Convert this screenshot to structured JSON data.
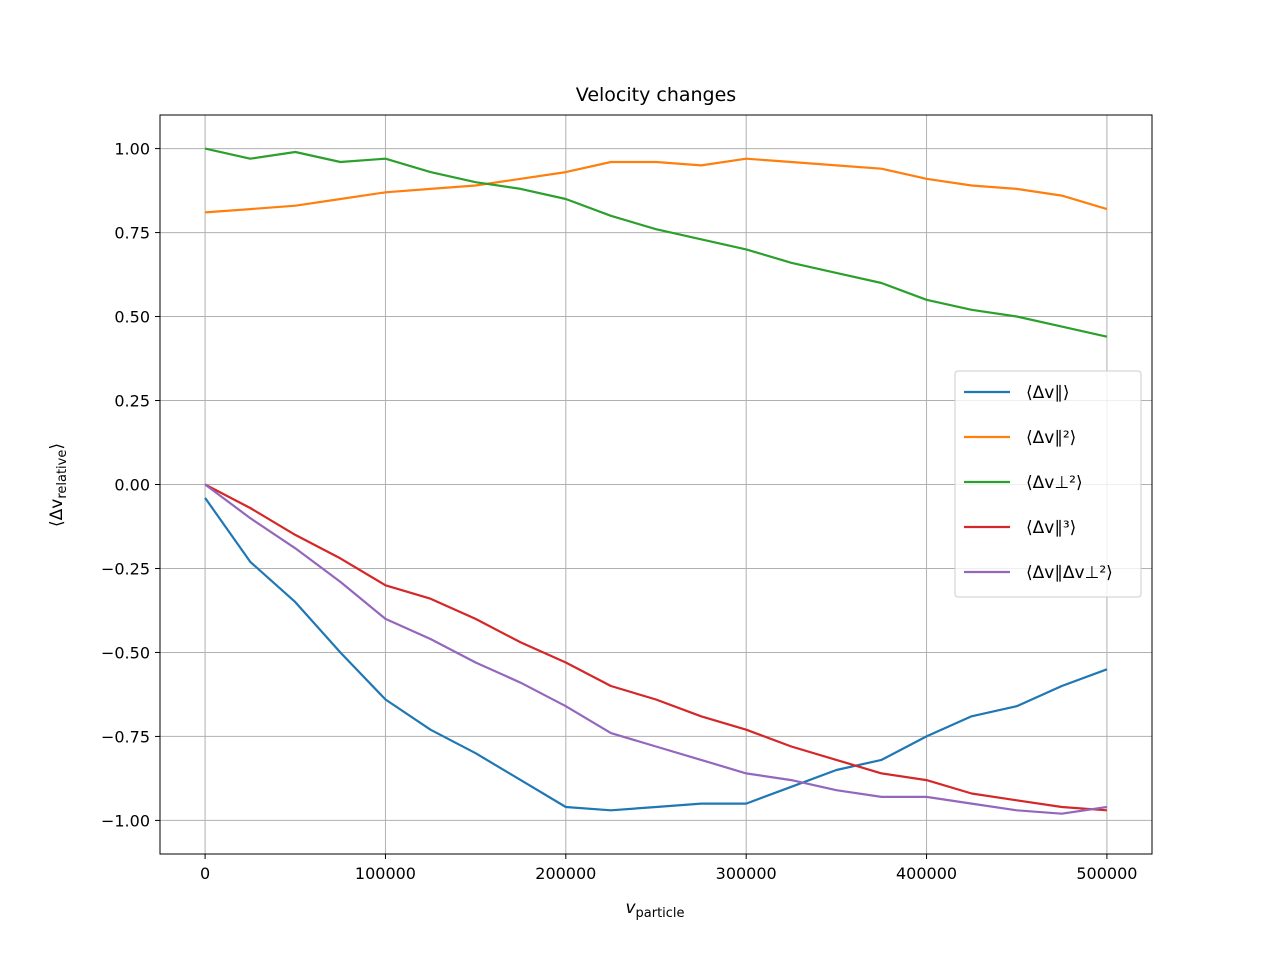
{
  "chart_data": {
    "type": "line",
    "title": "Velocity changes",
    "xlabel": {
      "main": "v",
      "sub": "particle"
    },
    "ylabel": {
      "main": "⟨Δv",
      "sub": "relative",
      "close": "⟩"
    },
    "xlim": [
      -25000,
      525000
    ],
    "ylim": [
      -1.1,
      1.1
    ],
    "xticks": [
      0,
      100000,
      200000,
      300000,
      400000,
      500000
    ],
    "xtick_labels": [
      "0",
      "100000",
      "200000",
      "300000",
      "400000",
      "500000"
    ],
    "yticks": [
      1.0,
      0.75,
      0.5,
      0.25,
      0.0,
      -0.25,
      -0.5,
      -0.75,
      -1.0
    ],
    "ytick_labels": [
      "1.00",
      "0.75",
      "0.50",
      "0.25",
      "0.00",
      "−0.25",
      "−0.50",
      "−0.75",
      "−1.00"
    ],
    "grid": true,
    "legend_position": "center-right",
    "x": [
      0,
      25000,
      50000,
      75000,
      100000,
      125000,
      150000,
      175000,
      200000,
      225000,
      250000,
      275000,
      300000,
      325000,
      350000,
      375000,
      400000,
      425000,
      450000,
      475000,
      500000
    ],
    "series": [
      {
        "name": "⟨Δv∥⟩",
        "color": "#1f77b4",
        "values": [
          -0.04,
          -0.23,
          -0.35,
          -0.5,
          -0.64,
          -0.73,
          -0.8,
          -0.88,
          -0.96,
          -0.97,
          -0.96,
          -0.95,
          -0.95,
          -0.9,
          -0.85,
          -0.82,
          -0.75,
          -0.69,
          -0.66,
          -0.6,
          -0.55
        ]
      },
      {
        "name": "⟨Δv∥²⟩",
        "color": "#ff7f0e",
        "values": [
          0.81,
          0.82,
          0.83,
          0.85,
          0.87,
          0.88,
          0.89,
          0.91,
          0.93,
          0.96,
          0.96,
          0.95,
          0.97,
          0.96,
          0.95,
          0.94,
          0.91,
          0.89,
          0.88,
          0.86,
          0.82
        ]
      },
      {
        "name": "⟨Δv⊥²⟩",
        "color": "#2ca02c",
        "values": [
          1.0,
          0.97,
          0.99,
          0.96,
          0.97,
          0.93,
          0.9,
          0.88,
          0.85,
          0.8,
          0.76,
          0.73,
          0.7,
          0.66,
          0.63,
          0.6,
          0.55,
          0.52,
          0.5,
          0.47,
          0.44
        ]
      },
      {
        "name": "⟨Δv∥³⟩",
        "color": "#d62728",
        "values": [
          0.0,
          -0.07,
          -0.15,
          -0.22,
          -0.3,
          -0.34,
          -0.4,
          -0.47,
          -0.53,
          -0.6,
          -0.64,
          -0.69,
          -0.73,
          -0.78,
          -0.82,
          -0.86,
          -0.88,
          -0.92,
          -0.94,
          -0.96,
          -0.97
        ]
      },
      {
        "name": "⟨Δv∥Δv⊥²⟩",
        "color": "#9467bd",
        "values": [
          0.0,
          -0.1,
          -0.19,
          -0.29,
          -0.4,
          -0.46,
          -0.53,
          -0.59,
          -0.66,
          -0.74,
          -0.78,
          -0.82,
          -0.86,
          -0.88,
          -0.91,
          -0.93,
          -0.93,
          -0.95,
          -0.97,
          -0.98,
          -0.96
        ]
      }
    ]
  }
}
